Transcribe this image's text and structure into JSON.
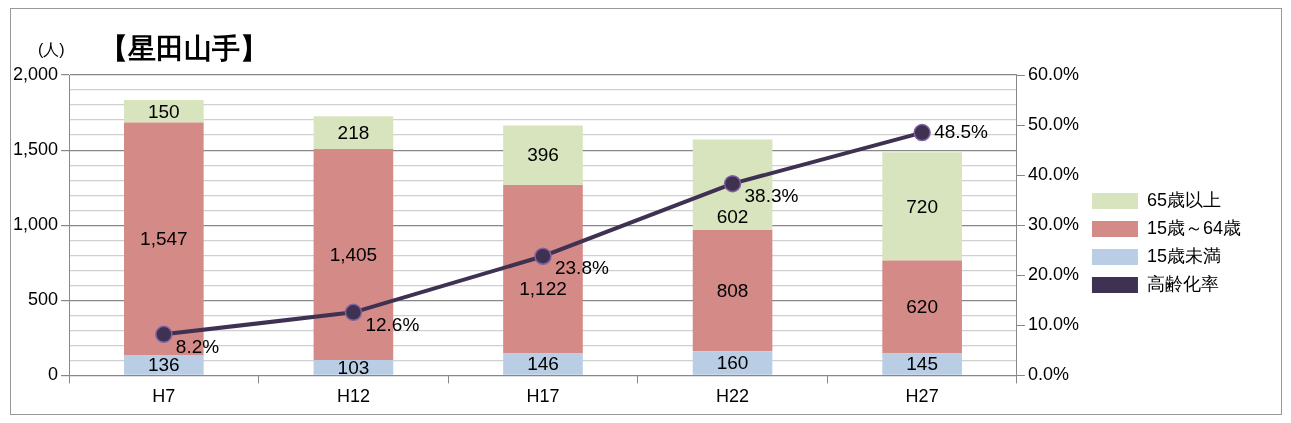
{
  "chart_data": {
    "type": "bar",
    "title": "【星田山手】",
    "ylabel": "(人)",
    "categories": [
      "H7",
      "H12",
      "H17",
      "H22",
      "H27"
    ],
    "stacked": true,
    "grid": "y",
    "legend": "right",
    "marker": "circle",
    "ylim": [
      0,
      2000
    ],
    "yticks": [
      {
        "value": 0,
        "label": "0"
      },
      {
        "value": 100,
        "label": null
      },
      {
        "value": 200,
        "label": null
      },
      {
        "value": 300,
        "label": null
      },
      {
        "value": 400,
        "label": null
      },
      {
        "value": 500,
        "label": "500"
      },
      {
        "value": 600,
        "label": null
      },
      {
        "value": 700,
        "label": null
      },
      {
        "value": 800,
        "label": null
      },
      {
        "value": 900,
        "label": null
      },
      {
        "value": 1000,
        "label": "1,000"
      },
      {
        "value": 1100,
        "label": null
      },
      {
        "value": 1200,
        "label": null
      },
      {
        "value": 1300,
        "label": null
      },
      {
        "value": 1400,
        "label": null
      },
      {
        "value": 1500,
        "label": "1,500"
      },
      {
        "value": 1600,
        "label": null
      },
      {
        "value": 1700,
        "label": null
      },
      {
        "value": 1800,
        "label": null
      },
      {
        "value": 1900,
        "label": null
      },
      {
        "value": 2000,
        "label": "2,000"
      }
    ],
    "y2lim": [
      0,
      60
    ],
    "y2ticks": [
      {
        "value": 0,
        "label": "0.0%"
      },
      {
        "value": 10,
        "label": "10.0%"
      },
      {
        "value": 20,
        "label": "20.0%"
      },
      {
        "value": 30,
        "label": "30.0%"
      },
      {
        "value": 40,
        "label": "40.0%"
      },
      {
        "value": 50,
        "label": "50.0%"
      },
      {
        "value": 60,
        "label": "60.0%"
      }
    ],
    "series": [
      {
        "name": "15歳未満",
        "color": "#b9cde5",
        "values": [
          136,
          103,
          146,
          160,
          145
        ],
        "value_labels": [
          "136",
          "103",
          "146",
          "160",
          "145"
        ]
      },
      {
        "name": "15歳～64歳",
        "color": "#d48a87",
        "values": [
          1547,
          1405,
          1122,
          808,
          620
        ],
        "value_labels": [
          "1,547",
          "1,405",
          "1,122",
          "808",
          "620"
        ]
      },
      {
        "name": "65歳以上",
        "color": "#d7e4bd",
        "values": [
          150,
          218,
          396,
          602,
          720
        ],
        "value_labels": [
          "150",
          "218",
          "396",
          "602",
          "720"
        ]
      },
      {
        "name": "高齢化率",
        "type": "line",
        "axis": "y2",
        "color": "#3f3151",
        "values": [
          8.2,
          12.6,
          23.8,
          38.3,
          48.5
        ],
        "value_labels": [
          "8.2%",
          "12.6%",
          "23.8%",
          "38.3%",
          "48.5%"
        ]
      }
    ]
  }
}
